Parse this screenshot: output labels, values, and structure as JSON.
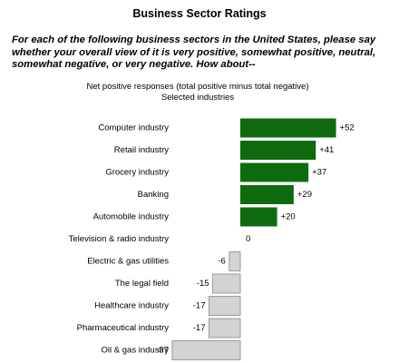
{
  "chart_data": {
    "type": "bar",
    "orientation": "horizontal",
    "title": "Business Sector Ratings",
    "subtitle": "For each of the following business sectors in the United States, please say whether your overall view of it is very positive, somewhat positive, neutral, somewhat negative, or very negative. How about--",
    "caption": [
      "Net positive responses (total positive minus total negative)",
      "Selected industries"
    ],
    "categories": [
      "Computer industry",
      "Retail industry",
      "Grocery industry",
      "Banking",
      "Automobile industry",
      "Television & radio industry",
      "Electric & gas utilities",
      "The legal field",
      "Healthcare industry",
      "Pharmaceutical industry",
      "Oil & gas industry"
    ],
    "values": [
      52,
      41,
      37,
      29,
      20,
      0,
      -6,
      -15,
      -17,
      -17,
      -37
    ],
    "value_labels": [
      "+52",
      "+41",
      "+37",
      "+29",
      "+20",
      "0",
      "-6",
      "-15",
      "-17",
      "-17",
      "-37"
    ],
    "positive_color": "#0f6b0f",
    "negative_color": "#d3d3d3"
  }
}
